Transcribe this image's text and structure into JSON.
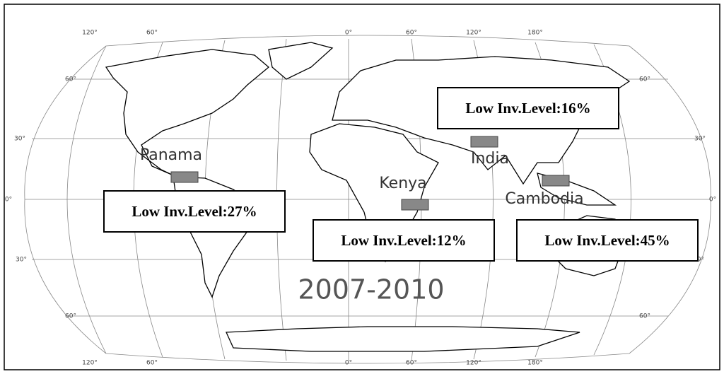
{
  "title": "2007-2010",
  "longitude_labels": [
    "120°",
    "60°",
    "0°",
    "60°",
    "120°",
    "180°"
  ],
  "latitude_labels": [
    "60°",
    "30°",
    "0°",
    "30°",
    "60°"
  ],
  "sites": [
    {
      "name": "Panama",
      "label": "Low Inv.Level:27%"
    },
    {
      "name": "India",
      "label": "Low Inv.Level:16%"
    },
    {
      "name": "Kenya",
      "label": "Low Inv.Level:12%"
    },
    {
      "name": "Cambodia",
      "label": "Low Inv.Level:45%"
    }
  ]
}
